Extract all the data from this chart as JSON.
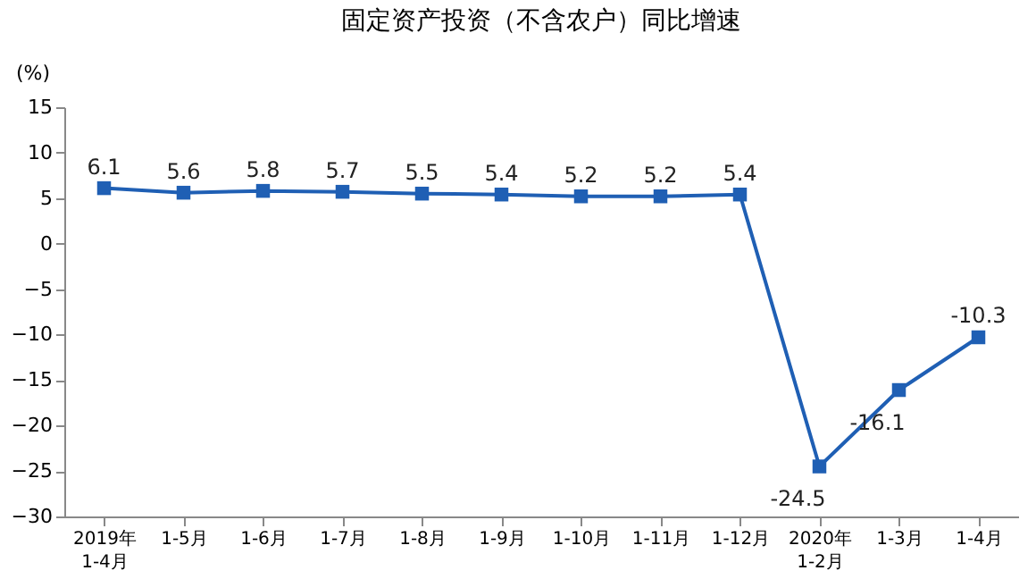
{
  "chart_data": {
    "type": "line",
    "title": "固定资产投资（不含农户）同比增速",
    "ylabel": "(%)",
    "categories": [
      "2019年\n1-4月",
      "1-5月",
      "1-6月",
      "1-7月",
      "1-8月",
      "1-9月",
      "1-10月",
      "1-11月",
      "1-12月",
      "2020年\n1-2月",
      "1-3月",
      "1-4月"
    ],
    "series": [
      {
        "color": "#1f5fb4",
        "values": [
          6.1,
          5.6,
          5.8,
          5.7,
          5.5,
          5.4,
          5.2,
          5.2,
          5.4,
          -24.5,
          -16.1,
          -10.3
        ]
      }
    ],
    "ylim": [
      -30,
      15
    ],
    "yticks": [
      -30,
      -25,
      -20,
      -15,
      -10,
      -5,
      0,
      5,
      10,
      15
    ],
    "marker": "square",
    "line_style": "solid",
    "data_labels": true,
    "grid": false
  }
}
